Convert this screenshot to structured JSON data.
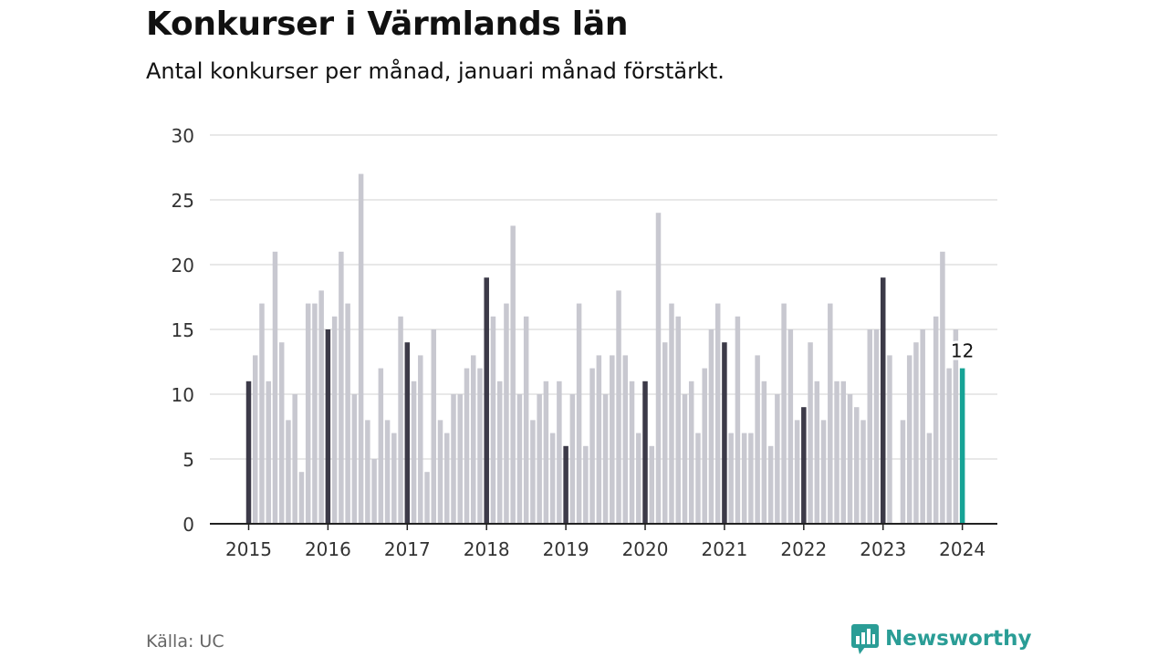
{
  "title": "Konkurser i Värmlands län",
  "subtitle": "Antal konkurser per månad, januari månad förstärkt.",
  "source": "Källa: UC",
  "brand": "Newsworthy",
  "colors": {
    "bar": "#c8c8d0",
    "january": "#3c3a48",
    "latest": "#17a396",
    "grid": "#d9d9d9",
    "axis": "#222222",
    "brand": "#2a9d96"
  },
  "chart_data": {
    "type": "bar",
    "x_start": "2015-01",
    "x_tick_labels": [
      "2015",
      "2016",
      "2017",
      "2018",
      "2019",
      "2020",
      "2021",
      "2022",
      "2023",
      "2024"
    ],
    "values": [
      11,
      13,
      17,
      11,
      21,
      14,
      8,
      10,
      4,
      17,
      17,
      18,
      15,
      16,
      21,
      17,
      10,
      27,
      8,
      5,
      12,
      8,
      7,
      16,
      14,
      11,
      13,
      4,
      15,
      8,
      7,
      10,
      10,
      12,
      13,
      12,
      19,
      16,
      11,
      17,
      23,
      10,
      16,
      8,
      10,
      11,
      7,
      11,
      6,
      10,
      17,
      6,
      12,
      13,
      10,
      13,
      18,
      13,
      11,
      7,
      11,
      6,
      24,
      14,
      17,
      16,
      10,
      11,
      7,
      12,
      15,
      17,
      14,
      7,
      16,
      7,
      7,
      13,
      11,
      6,
      10,
      17,
      15,
      8,
      9,
      14,
      11,
      8,
      17,
      11,
      11,
      10,
      9,
      8,
      15,
      15,
      19,
      13,
      0,
      8,
      13,
      14,
      15,
      7,
      16,
      21,
      12,
      15,
      12
    ],
    "highlight": "januari",
    "annotations": [
      {
        "label": "12",
        "date": "2024-01",
        "value": 12
      }
    ],
    "y_ticks": [
      0,
      5,
      10,
      15,
      20,
      25,
      30
    ],
    "ylim": [
      0,
      30
    ],
    "xlabel": "",
    "ylabel": "",
    "grid": true
  }
}
